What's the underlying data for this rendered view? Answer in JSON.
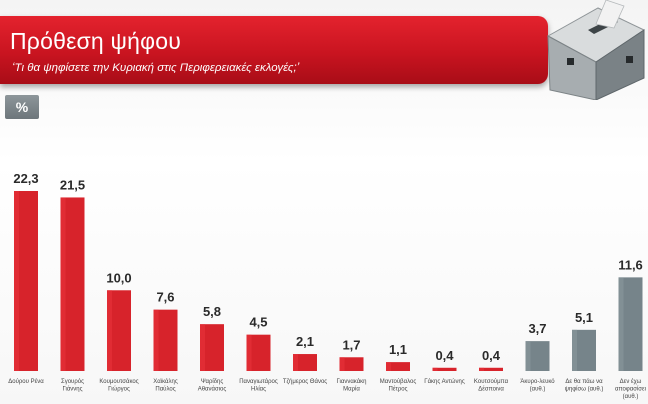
{
  "header": {
    "title": "Πρόθεση ψήφου",
    "subtitle": "‘Τι θα ψηφίσετε την Κυριακή στις Περιφερειακές εκλογές;’"
  },
  "unit_badge": "%",
  "colors": {
    "banner": "#cc1520",
    "candidate_bar": "#d7232b",
    "other_bar": "#76848a",
    "badge": "#7d868b"
  },
  "chart_data": {
    "type": "bar",
    "categories": [
      [
        "Δούρου Ρένα"
      ],
      [
        "Σγουρός",
        "Γιάννης"
      ],
      [
        "Κουμουτσάκος",
        "Γιώργος"
      ],
      [
        "Χαϊκάλης",
        "Παύλος"
      ],
      [
        "Ψαρίδης",
        "Αθανάσιος"
      ],
      [
        "Παναγιωτάρος",
        "Ηλίας"
      ],
      [
        "Τζήμερος Θάνος"
      ],
      [
        "Γιαννακάκη",
        "Μαρία"
      ],
      [
        "Μαντούβαλος",
        "Πέτρος"
      ],
      [
        "Γάκης Αντώνης"
      ],
      [
        "Κουτσούμπα",
        "Δέσποινα"
      ],
      [
        "Άκυρο-λευκό",
        "(αυθ.)"
      ],
      [
        "Δε θα πάω να",
        "ψηφίσω (αυθ.)"
      ],
      [
        "Δεν έχω",
        "αποφασίσει",
        "(αυθ.)"
      ]
    ],
    "values": [
      22.3,
      21.5,
      10.0,
      7.6,
      5.8,
      4.5,
      2.1,
      1.7,
      1.1,
      0.4,
      0.4,
      3.7,
      5.1,
      11.6
    ],
    "value_labels": [
      "22,3",
      "21,5",
      "10,0",
      "7,6",
      "5,8",
      "4,5",
      "2,1",
      "1,7",
      "1,1",
      "0,4",
      "0,4",
      "3,7",
      "5,1",
      "11,6"
    ],
    "groups": [
      "candidate",
      "candidate",
      "candidate",
      "candidate",
      "candidate",
      "candidate",
      "candidate",
      "candidate",
      "candidate",
      "candidate",
      "candidate",
      "other",
      "other",
      "other"
    ],
    "ylim": [
      0,
      22.3
    ],
    "grid": false,
    "legend": "none"
  }
}
